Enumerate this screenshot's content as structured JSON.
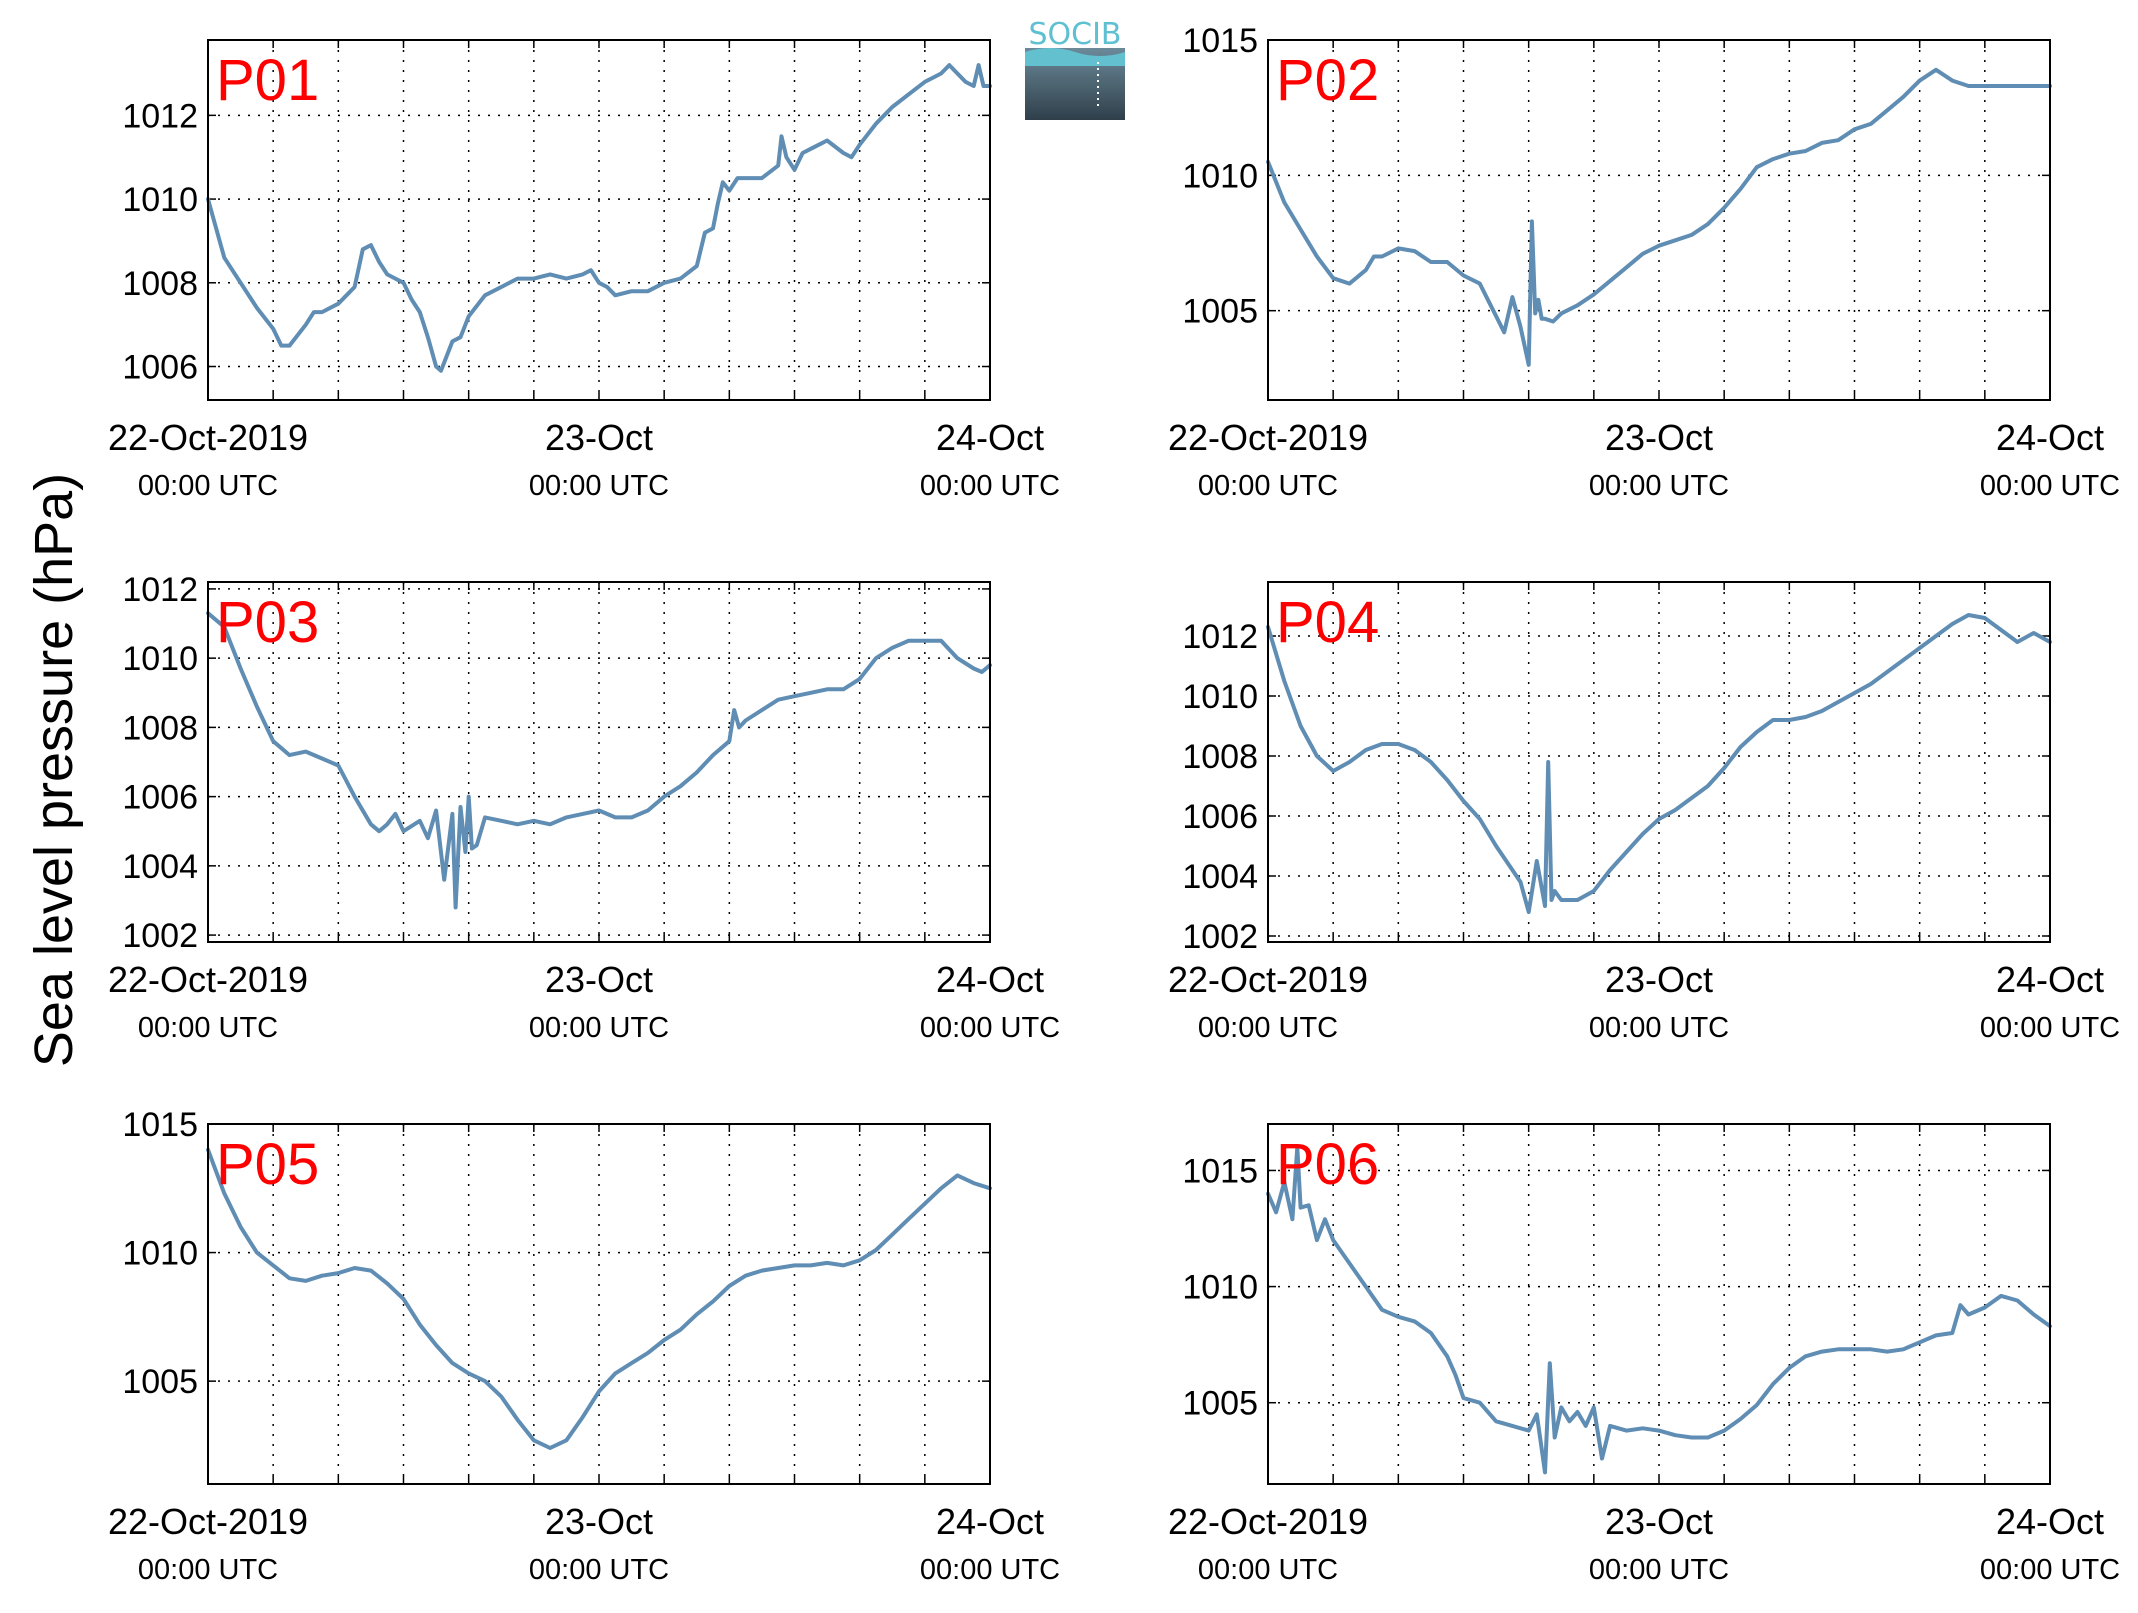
{
  "figure": {
    "ylabel": "Sea level pressure (hPa)",
    "logo_text": "SOCIB",
    "line_color": "#5f8db3",
    "station_label_color": "#ff0000",
    "grid": "dotted"
  },
  "chart_data": [
    {
      "type": "line",
      "station": "P01",
      "xlim": [
        0,
        48
      ],
      "ylim": [
        1005.2,
        1013.8
      ],
      "yticks": [
        1006,
        1008,
        1010,
        1012
      ],
      "xtick_labels": [
        {
          "x": 0,
          "date": "22-Oct-2019",
          "time": "00:00 UTC"
        },
        {
          "x": 24,
          "date": "23-Oct",
          "time": "00:00 UTC"
        },
        {
          "x": 48,
          "date": "24-Oct",
          "time": "00:00 UTC"
        }
      ],
      "series": [
        {
          "x": [
            0,
            1,
            2,
            3,
            4,
            4.5,
            5,
            6,
            6.5,
            7,
            8,
            9,
            9.5,
            10,
            10.5,
            11,
            11.5,
            12,
            12.5,
            13,
            13.5,
            14,
            14.3,
            14.7,
            15,
            15.5,
            16,
            17,
            18,
            19,
            20,
            21,
            22,
            23,
            23.5,
            24,
            24.5,
            25,
            26,
            27,
            28,
            29,
            30,
            30.5,
            31,
            31.3,
            31.6,
            32,
            32.5,
            33,
            34,
            35,
            35.2,
            35.5,
            36,
            36.5,
            37,
            37.5,
            38,
            39,
            39.5,
            40,
            41,
            42,
            43,
            44,
            45,
            45.5,
            46,
            46.5,
            47,
            47.3,
            47.6,
            48
          ],
          "values": [
            1010.0,
            1008.6,
            1008.0,
            1007.4,
            1006.9,
            1006.5,
            1006.5,
            1007.0,
            1007.3,
            1007.3,
            1007.5,
            1007.9,
            1008.8,
            1008.9,
            1008.5,
            1008.2,
            1008.1,
            1008.0,
            1007.6,
            1007.3,
            1006.7,
            1006.0,
            1005.9,
            1006.3,
            1006.6,
            1006.7,
            1007.2,
            1007.7,
            1007.9,
            1008.1,
            1008.1,
            1008.2,
            1008.1,
            1008.2,
            1008.3,
            1008.0,
            1007.9,
            1007.7,
            1007.8,
            1007.8,
            1008.0,
            1008.1,
            1008.4,
            1009.2,
            1009.3,
            1009.9,
            1010.4,
            1010.2,
            1010.5,
            1010.5,
            1010.5,
            1010.8,
            1011.5,
            1011.0,
            1010.7,
            1011.1,
            1011.2,
            1011.3,
            1011.4,
            1011.1,
            1011.0,
            1011.3,
            1011.8,
            1012.2,
            1012.5,
            1012.8,
            1013.0,
            1013.2,
            1013.0,
            1012.8,
            1012.7,
            1013.2,
            1012.7,
            1012.7
          ]
        }
      ]
    },
    {
      "type": "line",
      "station": "P02",
      "xlim": [
        0,
        48
      ],
      "ylim": [
        1001.7,
        1015.0
      ],
      "yticks": [
        1005,
        1010,
        1015
      ],
      "xtick_labels": [
        {
          "x": 0,
          "date": "22-Oct-2019",
          "time": "00:00 UTC"
        },
        {
          "x": 24,
          "date": "23-Oct",
          "time": "00:00 UTC"
        },
        {
          "x": 48,
          "date": "24-Oct",
          "time": "00:00 UTC"
        }
      ],
      "series": [
        {
          "x": [
            0,
            1,
            2,
            3,
            4,
            5,
            6,
            6.5,
            7,
            8,
            9,
            10,
            11,
            12,
            13,
            13.5,
            14,
            14.5,
            15,
            15.5,
            16,
            16.2,
            16.4,
            16.6,
            16.8,
            17,
            17.5,
            18,
            19,
            20,
            21,
            22,
            23,
            24,
            25,
            26,
            27,
            28,
            29,
            30,
            31,
            32,
            33,
            34,
            35,
            36,
            37,
            38,
            39,
            40,
            41,
            42,
            43,
            44,
            45,
            46,
            47,
            48
          ],
          "values": [
            1010.5,
            1009.0,
            1008.0,
            1007.0,
            1006.2,
            1006.0,
            1006.5,
            1007.0,
            1007.0,
            1007.3,
            1007.2,
            1006.8,
            1006.8,
            1006.3,
            1006.0,
            1005.4,
            1004.8,
            1004.2,
            1005.5,
            1004.4,
            1003.0,
            1008.3,
            1004.9,
            1005.4,
            1004.7,
            1004.7,
            1004.6,
            1004.9,
            1005.2,
            1005.6,
            1006.1,
            1006.6,
            1007.1,
            1007.4,
            1007.6,
            1007.8,
            1008.2,
            1008.8,
            1009.5,
            1010.3,
            1010.6,
            1010.8,
            1010.9,
            1011.2,
            1011.3,
            1011.7,
            1011.9,
            1012.4,
            1012.9,
            1013.5,
            1013.9,
            1013.5,
            1013.3,
            1013.3,
            1013.3,
            1013.3,
            1013.3,
            1013.3
          ]
        }
      ]
    },
    {
      "type": "line",
      "station": "P03",
      "xlim": [
        0,
        48
      ],
      "ylim": [
        1001.8,
        1012.2
      ],
      "yticks": [
        1002,
        1004,
        1006,
        1008,
        1010,
        1012
      ],
      "xtick_labels": [
        {
          "x": 0,
          "date": "22-Oct-2019",
          "time": "00:00 UTC"
        },
        {
          "x": 24,
          "date": "23-Oct",
          "time": "00:00 UTC"
        },
        {
          "x": 48,
          "date": "24-Oct",
          "time": "00:00 UTC"
        }
      ],
      "series": [
        {
          "x": [
            0,
            1,
            2,
            3,
            4,
            5,
            6,
            7,
            8,
            9,
            10,
            10.5,
            11,
            11.5,
            12,
            13,
            13.5,
            14,
            14.5,
            15,
            15.2,
            15.5,
            15.8,
            16,
            16.2,
            16.5,
            17,
            18,
            19,
            20,
            21,
            22,
            23,
            24,
            25,
            26,
            27,
            28,
            29,
            30,
            31,
            32,
            32.3,
            32.6,
            33,
            34,
            35,
            36,
            37,
            38,
            39,
            40,
            41,
            42,
            43,
            44,
            45,
            46,
            47,
            47.5,
            48
          ],
          "values": [
            1011.3,
            1010.9,
            1009.7,
            1008.6,
            1007.6,
            1007.2,
            1007.3,
            1007.1,
            1006.9,
            1006.0,
            1005.2,
            1005.0,
            1005.2,
            1005.5,
            1005.0,
            1005.3,
            1004.8,
            1005.6,
            1003.6,
            1005.5,
            1002.8,
            1005.7,
            1004.4,
            1006.0,
            1004.5,
            1004.6,
            1005.4,
            1005.3,
            1005.2,
            1005.3,
            1005.2,
            1005.4,
            1005.5,
            1005.6,
            1005.4,
            1005.4,
            1005.6,
            1006.0,
            1006.3,
            1006.7,
            1007.2,
            1007.6,
            1008.5,
            1008.0,
            1008.2,
            1008.5,
            1008.8,
            1008.9,
            1009.0,
            1009.1,
            1009.1,
            1009.4,
            1010.0,
            1010.3,
            1010.5,
            1010.5,
            1010.5,
            1010.0,
            1009.7,
            1009.6,
            1009.8
          ]
        }
      ]
    },
    {
      "type": "line",
      "station": "P04",
      "xlim": [
        0,
        48
      ],
      "ylim": [
        1001.8,
        1013.8
      ],
      "yticks": [
        1002,
        1004,
        1006,
        1008,
        1010,
        1012
      ],
      "xtick_labels": [
        {
          "x": 0,
          "date": "22-Oct-2019",
          "time": "00:00 UTC"
        },
        {
          "x": 24,
          "date": "23-Oct",
          "time": "00:00 UTC"
        },
        {
          "x": 48,
          "date": "24-Oct",
          "time": "00:00 UTC"
        }
      ],
      "series": [
        {
          "x": [
            0,
            1,
            2,
            3,
            4,
            5,
            6,
            7,
            8,
            9,
            10,
            11,
            12,
            13,
            14,
            15,
            15.5,
            16,
            16.5,
            17,
            17.2,
            17.4,
            17.6,
            18,
            19,
            20,
            21,
            22,
            23,
            24,
            25,
            26,
            27,
            28,
            29,
            30,
            31,
            32,
            33,
            34,
            35,
            36,
            37,
            38,
            39,
            40,
            41,
            42,
            43,
            44,
            45,
            46,
            47,
            48
          ],
          "values": [
            1012.3,
            1010.5,
            1009.0,
            1008.0,
            1007.5,
            1007.8,
            1008.2,
            1008.4,
            1008.4,
            1008.2,
            1007.8,
            1007.2,
            1006.5,
            1005.9,
            1005.0,
            1004.2,
            1003.8,
            1002.8,
            1004.5,
            1003.0,
            1007.8,
            1003.2,
            1003.5,
            1003.2,
            1003.2,
            1003.5,
            1004.2,
            1004.8,
            1005.4,
            1005.9,
            1006.2,
            1006.6,
            1007.0,
            1007.6,
            1008.3,
            1008.8,
            1009.2,
            1009.2,
            1009.3,
            1009.5,
            1009.8,
            1010.1,
            1010.4,
            1010.8,
            1011.2,
            1011.6,
            1012.0,
            1012.4,
            1012.7,
            1012.6,
            1012.2,
            1011.8,
            1012.1,
            1011.8
          ]
        }
      ]
    },
    {
      "type": "line",
      "station": "P05",
      "xlim": [
        0,
        48
      ],
      "ylim": [
        1001.0,
        1015.0
      ],
      "yticks": [
        1005,
        1010,
        1015
      ],
      "xtick_labels": [
        {
          "x": 0,
          "date": "22-Oct-2019",
          "time": "00:00 UTC"
        },
        {
          "x": 24,
          "date": "23-Oct",
          "time": "00:00 UTC"
        },
        {
          "x": 48,
          "date": "24-Oct",
          "time": "00:00 UTC"
        }
      ],
      "series": [
        {
          "x": [
            0,
            1,
            2,
            3,
            4,
            5,
            6,
            7,
            8,
            9,
            10,
            11,
            12,
            13,
            14,
            15,
            16,
            17,
            18,
            19,
            20,
            21,
            22,
            23,
            24,
            25,
            26,
            27,
            28,
            29,
            30,
            31,
            32,
            33,
            34,
            35,
            36,
            37,
            38,
            39,
            40,
            41,
            42,
            43,
            44,
            45,
            46,
            47,
            48
          ],
          "values": [
            1014.0,
            1012.3,
            1011.0,
            1010.0,
            1009.5,
            1009.0,
            1008.9,
            1009.1,
            1009.2,
            1009.4,
            1009.3,
            1008.8,
            1008.2,
            1007.2,
            1006.4,
            1005.7,
            1005.3,
            1005.0,
            1004.4,
            1003.5,
            1002.7,
            1002.4,
            1002.7,
            1003.6,
            1004.6,
            1005.3,
            1005.7,
            1006.1,
            1006.6,
            1007.0,
            1007.6,
            1008.1,
            1008.7,
            1009.1,
            1009.3,
            1009.4,
            1009.5,
            1009.5,
            1009.6,
            1009.5,
            1009.7,
            1010.1,
            1010.7,
            1011.3,
            1011.9,
            1012.5,
            1013.0,
            1012.7,
            1012.5
          ]
        }
      ]
    },
    {
      "type": "line",
      "station": "P06",
      "xlim": [
        0,
        48
      ],
      "ylim": [
        1001.5,
        1017.0
      ],
      "yticks": [
        1005,
        1010,
        1015
      ],
      "xtick_labels": [
        {
          "x": 0,
          "date": "22-Oct-2019",
          "time": "00:00 UTC"
        },
        {
          "x": 24,
          "date": "23-Oct",
          "time": "00:00 UTC"
        },
        {
          "x": 48,
          "date": "24-Oct",
          "time": "00:00 UTC"
        }
      ],
      "series": [
        {
          "x": [
            0,
            0.5,
            1,
            1.5,
            1.8,
            2,
            2.5,
            3,
            3.5,
            4,
            5,
            6,
            7,
            8,
            9,
            10,
            11,
            11.5,
            12,
            13,
            14,
            15,
            16,
            16.5,
            17,
            17.3,
            17.6,
            18,
            18.5,
            19,
            19.5,
            20,
            20.5,
            21,
            22,
            23,
            24,
            25,
            26,
            27,
            28,
            29,
            30,
            31,
            32,
            33,
            34,
            35,
            36,
            37,
            38,
            39,
            40,
            41,
            42,
            42.5,
            43,
            44,
            45,
            46,
            47,
            48
          ],
          "values": [
            1014.0,
            1013.2,
            1014.5,
            1012.9,
            1016.0,
            1013.4,
            1013.5,
            1012.0,
            1012.9,
            1012.0,
            1011.0,
            1010.0,
            1009.0,
            1008.7,
            1008.5,
            1008.0,
            1007.0,
            1006.2,
            1005.2,
            1005.0,
            1004.2,
            1004.0,
            1003.8,
            1004.5,
            1002.0,
            1006.7,
            1003.5,
            1004.8,
            1004.2,
            1004.6,
            1004.0,
            1004.8,
            1002.6,
            1004.0,
            1003.8,
            1003.9,
            1003.8,
            1003.6,
            1003.5,
            1003.5,
            1003.8,
            1004.3,
            1004.9,
            1005.8,
            1006.5,
            1007.0,
            1007.2,
            1007.3,
            1007.3,
            1007.3,
            1007.2,
            1007.3,
            1007.6,
            1007.9,
            1008.0,
            1009.2,
            1008.8,
            1009.1,
            1009.6,
            1009.4,
            1008.8,
            1008.3
          ]
        }
      ]
    }
  ]
}
